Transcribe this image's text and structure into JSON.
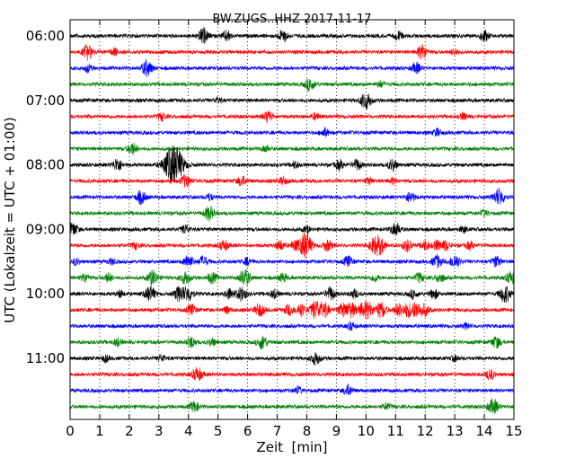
{
  "chart_data": {
    "type": "line",
    "title": "BW.ZUGS..HHZ 2017-11-17",
    "xlabel": "Zeit  [min]",
    "ylabel": "UTC (Lokalzeit = UTC + 01:00)",
    "xlim": [
      0,
      15
    ],
    "x_ticks": [
      "0",
      "1",
      "2",
      "3",
      "4",
      "5",
      "6",
      "7",
      "8",
      "9",
      "10",
      "11",
      "12",
      "13",
      "14",
      "15"
    ],
    "y_ticks": [
      "06:00",
      "07:00",
      "08:00",
      "09:00",
      "10:00",
      "11:00"
    ],
    "grid": "vertical dotted",
    "trace_colors": [
      "#000000",
      "#ff0000",
      "#0000ff",
      "#008000"
    ],
    "trace_start_times": [
      "06:00",
      "06:15",
      "06:30",
      "06:45",
      "07:00",
      "07:15",
      "07:30",
      "07:45",
      "08:00",
      "08:15",
      "08:30",
      "08:45",
      "09:00",
      "09:15",
      "09:30",
      "09:45",
      "10:00",
      "10:15",
      "10:30",
      "10:45",
      "11:00",
      "11:15",
      "11:30",
      "11:45"
    ],
    "series": [
      {
        "start": "06:00",
        "events": [
          [
            4.5,
            1.4
          ],
          [
            5.3,
            1.0
          ],
          [
            7.2,
            1.1
          ],
          [
            11.1,
            0.8
          ],
          [
            14.0,
            1.0
          ]
        ]
      },
      {
        "start": "06:15",
        "events": [
          [
            0.6,
            1.4
          ],
          [
            1.5,
            0.7
          ],
          [
            11.9,
            1.3
          ],
          [
            13.0,
            0.6
          ]
        ]
      },
      {
        "start": "06:30",
        "events": [
          [
            0.6,
            0.7
          ],
          [
            2.6,
            1.5
          ],
          [
            11.7,
            1.0
          ]
        ]
      },
      {
        "start": "06:45",
        "events": [
          [
            8.1,
            1.2
          ],
          [
            10.5,
            0.6
          ]
        ]
      },
      {
        "start": "07:00",
        "events": [
          [
            10.0,
            1.6
          ],
          [
            5.0,
            0.5
          ]
        ]
      },
      {
        "start": "07:15",
        "events": [
          [
            3.1,
            0.7
          ],
          [
            6.7,
            1.1
          ],
          [
            8.3,
            0.6
          ],
          [
            13.3,
            0.6
          ]
        ]
      },
      {
        "start": "07:30",
        "events": [
          [
            8.6,
            0.8
          ],
          [
            12.4,
            0.7
          ]
        ]
      },
      {
        "start": "07:45",
        "events": [
          [
            2.1,
            1.1
          ],
          [
            6.6,
            0.6
          ]
        ]
      },
      {
        "start": "08:00",
        "events": [
          [
            1.6,
            1.2
          ],
          [
            3.5,
            4.0
          ],
          [
            7.6,
            0.6
          ],
          [
            9.1,
            0.9
          ],
          [
            9.7,
            1.0
          ],
          [
            10.9,
            1.1
          ]
        ]
      },
      {
        "start": "08:15",
        "events": [
          [
            3.9,
            1.2
          ],
          [
            5.8,
            0.9
          ],
          [
            7.2,
            0.7
          ],
          [
            10.1,
            0.6
          ],
          [
            10.9,
            0.5
          ]
        ]
      },
      {
        "start": "08:30",
        "events": [
          [
            2.4,
            1.2
          ],
          [
            4.7,
            0.6
          ],
          [
            11.5,
            1.0
          ],
          [
            14.5,
            1.6
          ]
        ]
      },
      {
        "start": "08:45",
        "events": [
          [
            4.7,
            1.3
          ],
          [
            14.0,
            0.6
          ]
        ]
      },
      {
        "start": "09:00",
        "events": [
          [
            0.1,
            1.2
          ],
          [
            3.9,
            0.8
          ],
          [
            8.0,
            0.6
          ],
          [
            11.0,
            1.2
          ],
          [
            13.3,
            0.6
          ]
        ]
      },
      {
        "start": "09:15",
        "events": [
          [
            2.2,
            0.6
          ],
          [
            5.2,
            1.0
          ],
          [
            7.1,
            0.9
          ],
          [
            7.6,
            0.9
          ],
          [
            7.9,
            1.3
          ],
          [
            8.0,
            1.6
          ],
          [
            8.7,
            1.0
          ],
          [
            10.3,
            1.5
          ],
          [
            10.5,
            1.2
          ],
          [
            11.4,
            1.1
          ],
          [
            12.0,
            0.9
          ],
          [
            12.4,
            0.9
          ],
          [
            12.7,
            0.9
          ],
          [
            13.5,
            0.7
          ]
        ]
      },
      {
        "start": "09:30",
        "events": [
          [
            0.2,
            0.6
          ],
          [
            1.4,
            0.5
          ],
          [
            4.0,
            1.2
          ],
          [
            4.5,
            1.0
          ],
          [
            6.0,
            0.7
          ],
          [
            9.4,
            1.0
          ],
          [
            12.4,
            1.2
          ],
          [
            13.0,
            1.3
          ],
          [
            14.4,
            1.0
          ]
        ]
      },
      {
        "start": "09:45",
        "events": [
          [
            0.5,
            0.8
          ],
          [
            1.3,
            0.8
          ],
          [
            2.8,
            1.4
          ],
          [
            3.9,
            1.2
          ],
          [
            4.8,
            1.0
          ],
          [
            5.9,
            1.6
          ],
          [
            7.2,
            0.8
          ],
          [
            10.3,
            0.7
          ],
          [
            11.8,
            0.9
          ],
          [
            12.5,
            0.9
          ],
          [
            14.9,
            1.2
          ]
        ]
      },
      {
        "start": "10:00",
        "events": [
          [
            1.7,
            0.6
          ],
          [
            2.7,
            1.4
          ],
          [
            3.7,
            1.4
          ],
          [
            4.0,
            1.3
          ],
          [
            5.4,
            1.0
          ],
          [
            5.8,
            1.3
          ],
          [
            6.9,
            0.8
          ],
          [
            8.8,
            1.2
          ],
          [
            9.6,
            0.8
          ],
          [
            11.6,
            0.8
          ],
          [
            12.3,
            0.9
          ],
          [
            14.7,
            1.6
          ]
        ]
      },
      {
        "start": "10:15",
        "events": [
          [
            4.1,
            1.0
          ],
          [
            5.3,
            0.6
          ],
          [
            6.4,
            1.2
          ],
          [
            7.4,
            1.0
          ],
          [
            7.8,
            1.2
          ],
          [
            8.3,
            1.7
          ],
          [
            8.6,
            1.3
          ],
          [
            9.2,
            1.2
          ],
          [
            9.5,
            1.4
          ],
          [
            9.9,
            1.2
          ],
          [
            10.1,
            1.2
          ],
          [
            10.5,
            1.5
          ],
          [
            11.1,
            1.2
          ],
          [
            11.4,
            1.2
          ],
          [
            11.7,
            1.5
          ],
          [
            12.0,
            1.0
          ]
        ]
      },
      {
        "start": "10:30",
        "events": [
          [
            9.5,
            0.7
          ],
          [
            13.4,
            0.5
          ]
        ]
      },
      {
        "start": "10:45",
        "events": [
          [
            1.6,
            0.7
          ],
          [
            4.1,
            1.0
          ],
          [
            4.8,
            0.7
          ],
          [
            6.5,
            1.3
          ],
          [
            14.4,
            1.1
          ]
        ]
      },
      {
        "start": "11:00",
        "events": [
          [
            1.2,
            0.6
          ],
          [
            3.1,
            0.6
          ],
          [
            8.3,
            1.2
          ],
          [
            13.0,
            0.5
          ]
        ]
      },
      {
        "start": "11:15",
        "events": [
          [
            4.3,
            1.3
          ],
          [
            14.2,
            1.0
          ]
        ]
      },
      {
        "start": "11:30",
        "events": [
          [
            7.7,
            0.7
          ],
          [
            9.4,
            1.0
          ]
        ]
      },
      {
        "start": "11:45",
        "events": [
          [
            4.2,
            1.0
          ],
          [
            10.7,
            0.6
          ],
          [
            14.3,
            1.4
          ]
        ]
      }
    ]
  }
}
